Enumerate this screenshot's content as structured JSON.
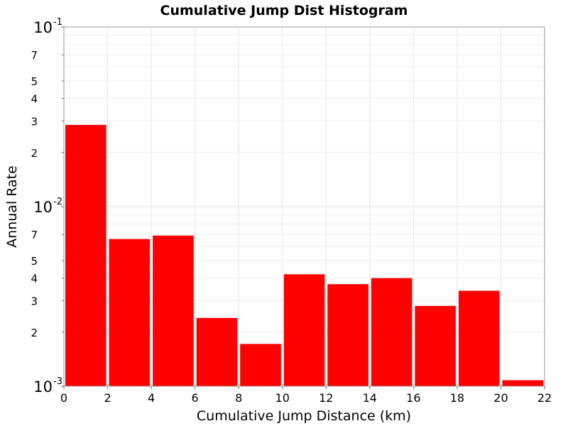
{
  "chart_data": {
    "type": "bar",
    "title": "Cumulative Jump Dist Histogram",
    "xlabel": "Cumulative Jump Distance (km)",
    "ylabel": "Annual Rate",
    "xlim": [
      0,
      22
    ],
    "ylim": [
      0.001,
      0.1
    ],
    "yscale": "log",
    "grid": true,
    "bar_color": "#ff0000",
    "x_ticks": [
      "0",
      "2",
      "4",
      "6",
      "8",
      "10",
      "12",
      "14",
      "16",
      "18",
      "20",
      "22"
    ],
    "y_major_ticks": [
      {
        "value": 0.1,
        "base": "10",
        "exponent": "-1"
      },
      {
        "value": 0.01,
        "base": "10",
        "exponent": "-2"
      },
      {
        "value": 0.001,
        "base": "10",
        "exponent": "-3"
      }
    ],
    "y_minor_ticks": [
      {
        "value": 0.07,
        "label": "7"
      },
      {
        "value": 0.05,
        "label": "5"
      },
      {
        "value": 0.04,
        "label": "4"
      },
      {
        "value": 0.03,
        "label": "3"
      },
      {
        "value": 0.02,
        "label": "2"
      },
      {
        "value": 0.007,
        "label": "7"
      },
      {
        "value": 0.005,
        "label": "5"
      },
      {
        "value": 0.004,
        "label": "4"
      },
      {
        "value": 0.003,
        "label": "3"
      },
      {
        "value": 0.002,
        "label": "2"
      }
    ],
    "bins": [
      {
        "x": 1,
        "value": 0.0285
      },
      {
        "x": 3,
        "value": 0.0066
      },
      {
        "x": 5,
        "value": 0.0069
      },
      {
        "x": 7,
        "value": 0.0024
      },
      {
        "x": 9,
        "value": 0.00172
      },
      {
        "x": 11,
        "value": 0.0042
      },
      {
        "x": 13,
        "value": 0.0037
      },
      {
        "x": 15,
        "value": 0.004
      },
      {
        "x": 17,
        "value": 0.0028
      },
      {
        "x": 19,
        "value": 0.0034
      },
      {
        "x": 21,
        "value": 0.00108
      }
    ],
    "bin_width": 2
  }
}
